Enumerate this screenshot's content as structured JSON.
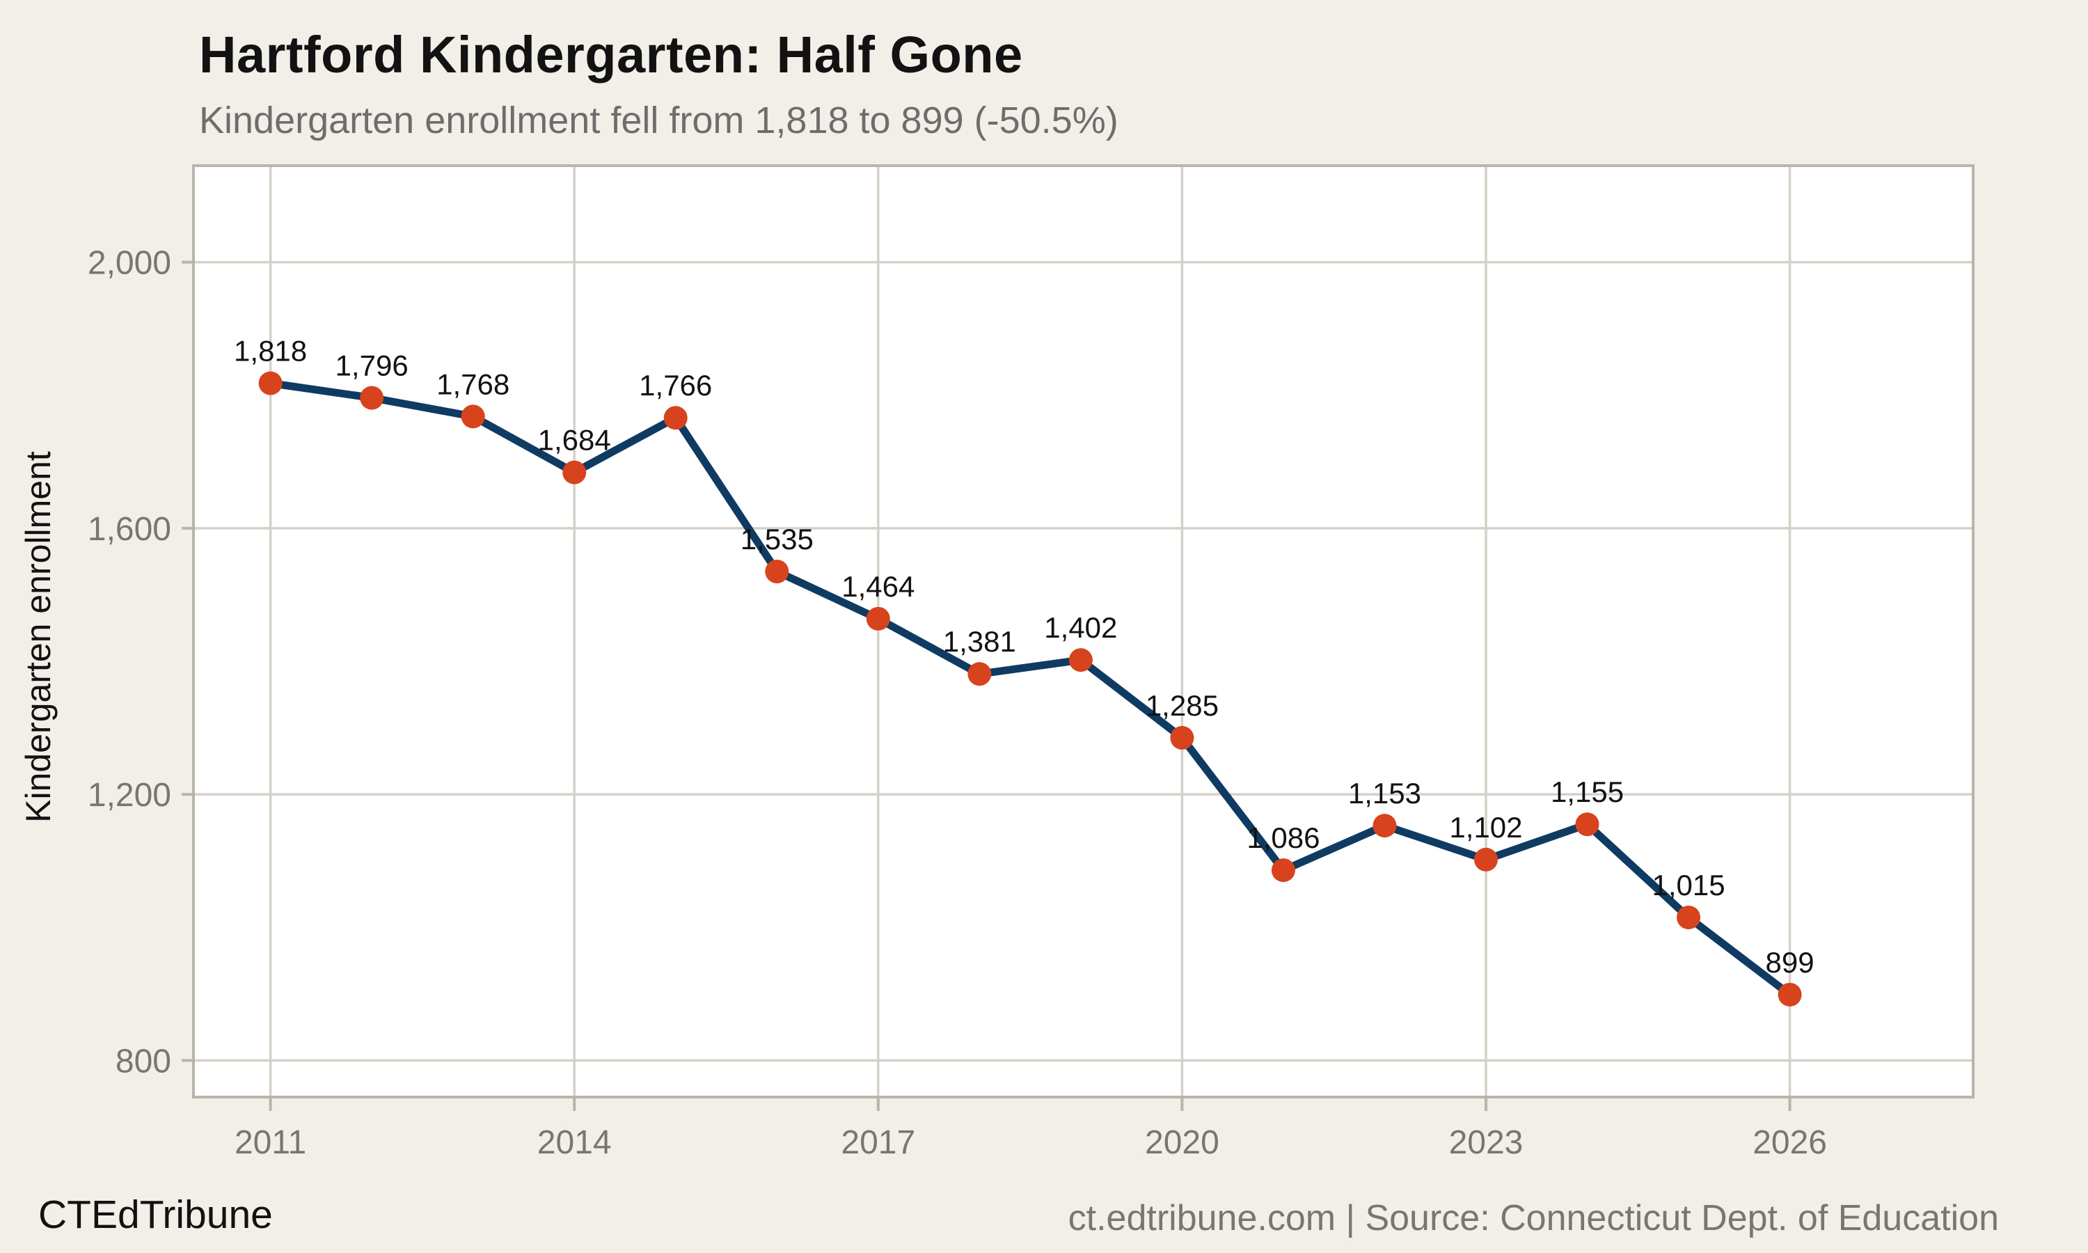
{
  "header": {
    "title": "Hartford Kindergarten: Half Gone",
    "subtitle": "Kindergarten enrollment fell from 1,818 to 899 (-50.5%)"
  },
  "footer": {
    "brand": "CTEdTribune",
    "source": "ct.edtribune.com | Source: Connecticut Dept. of Education"
  },
  "colors": {
    "background": "#f2efe9",
    "panel": "#ffffff",
    "grid": "#d5d1c9",
    "frame": "#b9b5ad",
    "line": "#0f3a62",
    "marker": "#d6431c",
    "title": "#121212",
    "subtitle": "#6d6d6d",
    "tick_label": "#7a756e",
    "data_label": "#121212"
  },
  "chart_data": {
    "type": "line",
    "title": "Hartford Kindergarten: Half Gone",
    "subtitle": "Kindergarten enrollment fell from 1,818 to 899 (-50.5%)",
    "xlabel": "",
    "ylabel": "Kindergarten enrollment",
    "x": [
      2011,
      2012,
      2013,
      2014,
      2015,
      2016,
      2017,
      2018,
      2019,
      2020,
      2021,
      2022,
      2023,
      2024,
      2025,
      2026
    ],
    "values": [
      1818,
      1796,
      1768,
      1684,
      1766,
      1535,
      1464,
      1381,
      1402,
      1285,
      1086,
      1153,
      1102,
      1155,
      1015,
      899
    ],
    "point_labels": [
      "1,818",
      "1,796",
      "1,768",
      "1,684",
      "1,766",
      "1,535",
      "1,464",
      "1,381",
      "1,402",
      "1,285",
      "1,086",
      "1,153",
      "1,102",
      "1,155",
      "1,015",
      "899"
    ],
    "x_ticks": [
      2011,
      2014,
      2017,
      2020,
      2023,
      2026
    ],
    "x_tick_labels": [
      "2011",
      "2014",
      "2017",
      "2020",
      "2023",
      "2026"
    ],
    "y_ticks": [
      800,
      1200,
      1600,
      2000
    ],
    "y_tick_labels": [
      "800",
      "1,200",
      "1,600",
      "2,000"
    ],
    "xlim": [
      2010.24,
      2027.81
    ],
    "ylim": [
      745,
      2145
    ],
    "grid": true,
    "legend": "none"
  }
}
